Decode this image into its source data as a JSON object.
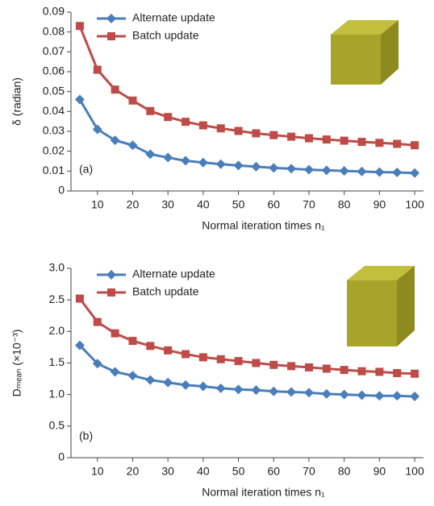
{
  "chart_data": [
    {
      "type": "line",
      "ylabel": "δ (radian)",
      "xlabel": "Normal iteration times n₁",
      "annotation": "(a)",
      "x": [
        5,
        10,
        15,
        20,
        25,
        30,
        35,
        40,
        45,
        50,
        55,
        60,
        65,
        70,
        75,
        80,
        85,
        90,
        95,
        100
      ],
      "xlim": [
        2.5,
        102.5
      ],
      "xticks": [
        10,
        20,
        30,
        40,
        50,
        60,
        70,
        80,
        90,
        100
      ],
      "ylim": [
        0,
        0.09
      ],
      "yticks": [
        0,
        0.01,
        0.02,
        0.03,
        0.04,
        0.05,
        0.06,
        0.07,
        0.08,
        0.09
      ],
      "series": [
        {
          "name": "Alternate update",
          "color": "#4a7ebb",
          "marker": "diamond",
          "values": [
            0.046,
            0.031,
            0.0255,
            0.023,
            0.0185,
            0.0168,
            0.0152,
            0.0143,
            0.0135,
            0.0128,
            0.0122,
            0.0116,
            0.0112,
            0.0107,
            0.0104,
            0.0101,
            0.0098,
            0.0095,
            0.0093,
            0.009
          ]
        },
        {
          "name": "Batch update",
          "color": "#be4b48",
          "marker": "square",
          "values": [
            0.083,
            0.061,
            0.051,
            0.0455,
            0.0402,
            0.0372,
            0.0348,
            0.033,
            0.0315,
            0.0302,
            0.029,
            0.0281,
            0.0273,
            0.0265,
            0.0259,
            0.0253,
            0.0247,
            0.0242,
            0.0237,
            0.023
          ]
        }
      ]
    },
    {
      "type": "line",
      "ylabel": "Dₘₑₐₙ (×10⁻³)",
      "xlabel": "Normal iteration times n₁",
      "annotation": "(b)",
      "x": [
        5,
        10,
        15,
        20,
        25,
        30,
        35,
        40,
        45,
        50,
        55,
        60,
        65,
        70,
        75,
        80,
        85,
        90,
        95,
        100
      ],
      "xlim": [
        2.5,
        102.5
      ],
      "xticks": [
        10,
        20,
        30,
        40,
        50,
        60,
        70,
        80,
        90,
        100
      ],
      "ylim": [
        0,
        3
      ],
      "yticks": [
        0,
        0.5,
        {
          "value": 1,
          "label": "1.0"
        },
        1.5,
        {
          "value": 2,
          "label": "2.0"
        },
        2.5,
        {
          "value": 3,
          "label": "3.0"
        }
      ],
      "series": [
        {
          "name": "Alternate update",
          "color": "#4a7ebb",
          "marker": "diamond",
          "values": [
            1.78,
            1.49,
            1.36,
            1.3,
            1.23,
            1.19,
            1.15,
            1.13,
            1.1,
            1.08,
            1.07,
            1.05,
            1.04,
            1.03,
            1.01,
            1.0,
            0.99,
            0.98,
            0.98,
            0.97
          ]
        },
        {
          "name": "Batch update",
          "color": "#be4b48",
          "marker": "square",
          "values": [
            2.52,
            2.15,
            1.97,
            1.85,
            1.77,
            1.7,
            1.64,
            1.59,
            1.56,
            1.53,
            1.5,
            1.47,
            1.45,
            1.43,
            1.41,
            1.39,
            1.37,
            1.36,
            1.34,
            1.33
          ]
        }
      ]
    }
  ]
}
